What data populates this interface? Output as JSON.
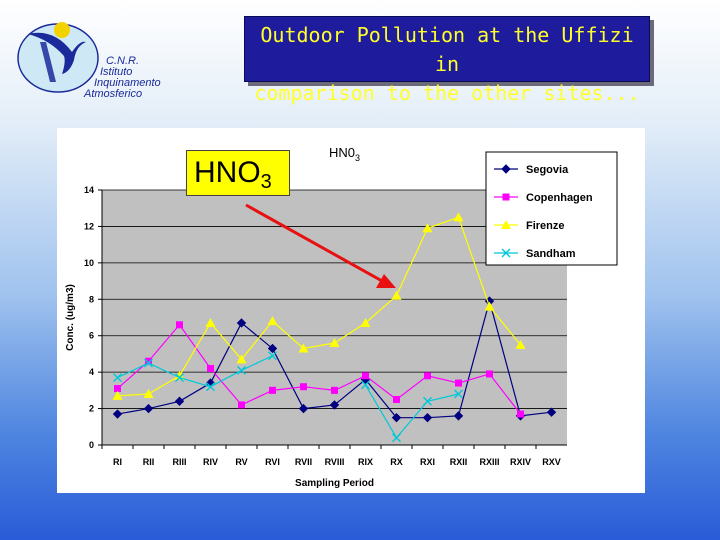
{
  "slide": {
    "title_line1": "Outdoor Pollution at the Uffizi in",
    "title_line2": "comparison to the other sites...",
    "logo_line1": "C.N.R.",
    "logo_line2": "Istituto",
    "logo_line3": "Inquinamento",
    "logo_line4": "Atmosferico",
    "callout_main": "HNO",
    "callout_sub": "3"
  },
  "colors": {
    "title_bg": "#1e1b9c",
    "title_text": "#ffff2a",
    "plot_bg": "#c0c0c0",
    "callout_bg": "#ffff00",
    "arrow": "#e81010",
    "logo_blue": "#1a2a9a",
    "logo_yellow": "#f4d200"
  },
  "chart_data": {
    "type": "line",
    "title_main": "HN0",
    "title_sub": "3",
    "xlabel": "Sampling Period",
    "ylabel": "Conc. (ug/m3)",
    "ylim": [
      0,
      14
    ],
    "yticks": [
      0,
      2,
      4,
      6,
      8,
      10,
      12,
      14
    ],
    "grid": true,
    "legend_position": "top-right",
    "categories": [
      "RI",
      "RII",
      "RIII",
      "RIV",
      "RV",
      "RVI",
      "RVII",
      "RVIII",
      "RIX",
      "RX",
      "RXI",
      "RXII",
      "RXIII",
      "RXIV",
      "RXV"
    ],
    "series": [
      {
        "name": "Segovia",
        "color": "#000080",
        "marker": "diamond",
        "values": [
          1.7,
          2.0,
          2.4,
          3.4,
          6.7,
          5.3,
          2.0,
          2.2,
          3.6,
          1.5,
          1.5,
          1.6,
          7.9,
          1.6,
          1.8
        ]
      },
      {
        "name": "Copenhagen",
        "color": "#ff00ff",
        "marker": "square",
        "values": [
          3.1,
          4.6,
          6.6,
          4.2,
          2.2,
          3.0,
          3.2,
          3.0,
          3.8,
          2.5,
          3.8,
          3.4,
          3.9,
          1.7,
          null
        ]
      },
      {
        "name": "Firenze",
        "color": "#ffff00",
        "marker": "triangle",
        "values": [
          2.7,
          2.8,
          3.8,
          6.7,
          4.7,
          6.8,
          5.3,
          5.6,
          6.7,
          8.2,
          11.9,
          12.5,
          7.6,
          5.5,
          null
        ]
      },
      {
        "name": "Sandham",
        "color": "#00c8d8",
        "marker": "x",
        "values": [
          3.7,
          4.5,
          3.7,
          3.2,
          4.1,
          4.9,
          null,
          null,
          3.3,
          0.4,
          2.4,
          2.8,
          null,
          null,
          null
        ]
      }
    ]
  }
}
